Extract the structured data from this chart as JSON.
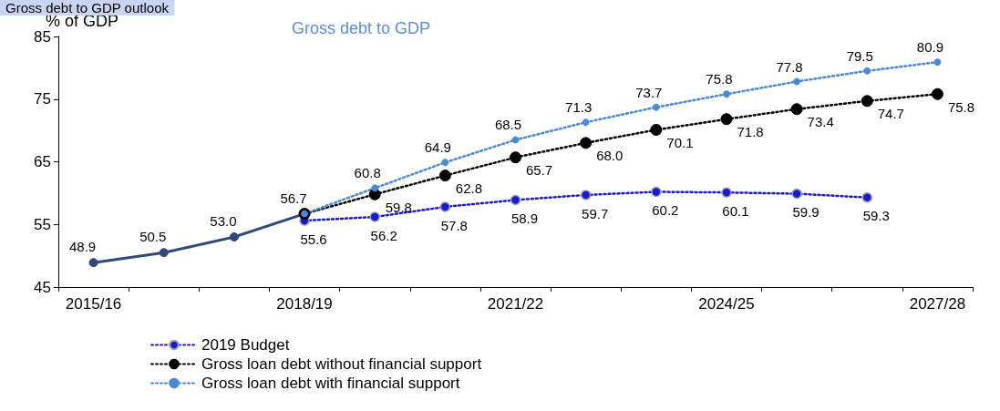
{
  "chart_data": {
    "type": "line",
    "title": "Gross debt to GDP outlook",
    "subtitle": "Gross debt to GDP",
    "ylabel": "% of GDP",
    "categories": [
      "2015/16",
      null,
      null,
      "2018/19",
      null,
      null,
      "2021/22",
      null,
      null,
      "2024/25",
      null,
      null,
      "2027/28"
    ],
    "ylim": [
      45,
      85
    ],
    "yticks": [
      45,
      55,
      65,
      75,
      85
    ],
    "grid": false,
    "legend": "bottom",
    "marker": "circle",
    "series": [
      {
        "color": "#2f4a7a",
        "line_style": "solid",
        "values": [
          48.9,
          50.5,
          53.0,
          56.7,
          null,
          null,
          null,
          null,
          null,
          null,
          null,
          null,
          null
        ],
        "value_labels": [
          "48.9",
          "50.5",
          "53.0",
          "56.7",
          null,
          null,
          null,
          null,
          null,
          null,
          null,
          null,
          null
        ]
      },
      {
        "name": "2019 Budget",
        "color": "#1a1acc",
        "line_style": "dotted",
        "values": [
          null,
          null,
          null,
          55.6,
          56.2,
          57.8,
          58.9,
          59.7,
          60.2,
          60.1,
          59.9,
          59.3,
          null
        ],
        "value_labels": [
          null,
          null,
          null,
          "55.6",
          "56.2",
          "57.8",
          "58.9",
          "59.7",
          "60.2",
          "60.1",
          "59.9",
          "59.3",
          null
        ]
      },
      {
        "name": "Gross loan debt without financial support",
        "color": "#000000",
        "line_style": "dotted",
        "values": [
          null,
          null,
          null,
          56.7,
          59.8,
          62.8,
          65.7,
          68.0,
          70.1,
          71.8,
          73.4,
          74.7,
          75.8
        ],
        "value_labels": [
          null,
          null,
          null,
          null,
          "59.8",
          "62.8",
          "65.7",
          "68.0",
          "70.1",
          "71.8",
          "73.4",
          "74.7",
          "75.8"
        ]
      },
      {
        "name": "Gross loan debt with financial support",
        "color": "#4a8ad4",
        "line_style": "dotted",
        "values": [
          null,
          null,
          null,
          56.7,
          60.8,
          64.9,
          68.5,
          71.3,
          73.7,
          75.8,
          77.8,
          79.5,
          80.9
        ],
        "value_labels": [
          null,
          null,
          null,
          null,
          "60.8",
          "64.9",
          "68.5",
          "71.3",
          "73.7",
          "75.8",
          "77.8",
          "79.5",
          "80.9"
        ]
      }
    ]
  }
}
